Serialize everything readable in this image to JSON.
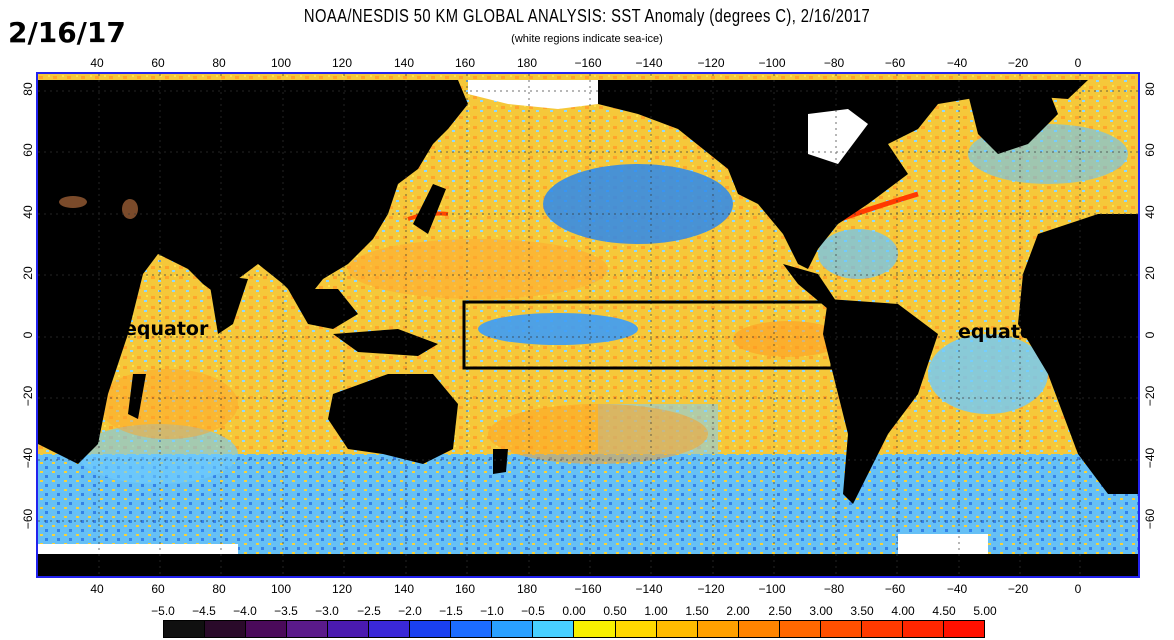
{
  "header": {
    "date_label": "2/16/17",
    "title": "NOAA/NESDIS 50 KM GLOBAL ANALYSIS: SST Anomaly (degrees C), 2/16/2017",
    "subtitle": "(white regions indicate sea-ice)"
  },
  "map": {
    "lon_ticks_top": [
      "40",
      "60",
      "80",
      "100",
      "120",
      "140",
      "160",
      "180",
      "−160",
      "−140",
      "−120",
      "−100",
      "−80",
      "−60",
      "−40",
      "−20",
      "0"
    ],
    "lon_ticks_bottom": [
      "40",
      "60",
      "80",
      "100",
      "120",
      "140",
      "160",
      "180",
      "−160",
      "−140",
      "−120",
      "−100",
      "−80",
      "−60",
      "−40",
      "−20",
      "0"
    ],
    "lat_ticks_left": [
      "80",
      "60",
      "40",
      "20",
      "0",
      "−20",
      "−40",
      "−60"
    ],
    "lat_ticks_right": [
      "80",
      "60",
      "40",
      "20",
      "0",
      "−20",
      "−40",
      "−60"
    ],
    "annotations": {
      "equator_left": "equator",
      "equator_right": "equator"
    },
    "colors": {
      "land": "#000000",
      "sea_ice": "#ffffff",
      "frame": "#2222ee",
      "grid": "#333333",
      "highlight_box": "#000000"
    }
  },
  "colorbar": {
    "labels": [
      "−5.0",
      "−4.5",
      "−4.0",
      "−3.5",
      "−3.0",
      "−2.5",
      "−2.0",
      "−1.5",
      "−1.0",
      "−0.5",
      "0.00",
      "0.50",
      "1.00",
      "1.50",
      "2.00",
      "2.50",
      "3.00",
      "3.50",
      "4.00",
      "4.50",
      "5.00"
    ],
    "colors": [
      "#101010",
      "#2a0a2a",
      "#4a0a5a",
      "#5a1a8a",
      "#4a1ab0",
      "#3a28d8",
      "#1a40f0",
      "#1c6cff",
      "#2aa0ff",
      "#48d0ff",
      "#f8f000",
      "#ffd800",
      "#ffbb00",
      "#ffa000",
      "#ff8400",
      "#ff6800",
      "#ff5000",
      "#ff3a00",
      "#ff2600",
      "#ff1000"
    ]
  }
}
